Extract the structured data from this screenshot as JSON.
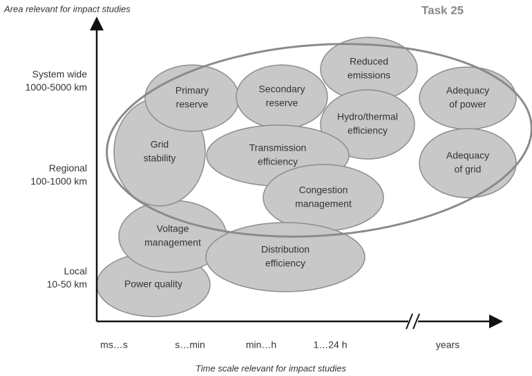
{
  "y_axis_title": "Area relevant for impact studies",
  "task_label": "Task 25",
  "x_axis_title": "Time scale relevant for impact studies",
  "y_labels": [
    [
      "System wide",
      "1000-5000 km"
    ],
    [
      "Regional",
      "100-1000 km"
    ],
    [
      "Local",
      "10-50 km"
    ]
  ],
  "x_labels": [
    "ms…s",
    "s…min",
    "min…h",
    "1…24 h",
    "years"
  ],
  "nodes": [
    {
      "label": [
        "Power quality"
      ]
    },
    {
      "label": [
        "Voltage",
        "management"
      ]
    },
    {
      "label": [
        "Grid",
        "stability"
      ]
    },
    {
      "label": [
        "Primary",
        "reserve"
      ]
    },
    {
      "label": [
        "Secondary",
        "reserve"
      ]
    },
    {
      "label": [
        "Reduced",
        "emissions"
      ]
    },
    {
      "label": [
        "Hydro/thermal",
        "efficiency"
      ]
    },
    {
      "label": [
        "Transmission",
        "efficiency"
      ]
    },
    {
      "label": [
        "Congestion",
        "management"
      ]
    },
    {
      "label": [
        "Distribution",
        "efficiency"
      ]
    },
    {
      "label": [
        "Adequacy",
        "of power"
      ]
    },
    {
      "label": [
        "Adequacy",
        "of grid"
      ]
    }
  ]
}
